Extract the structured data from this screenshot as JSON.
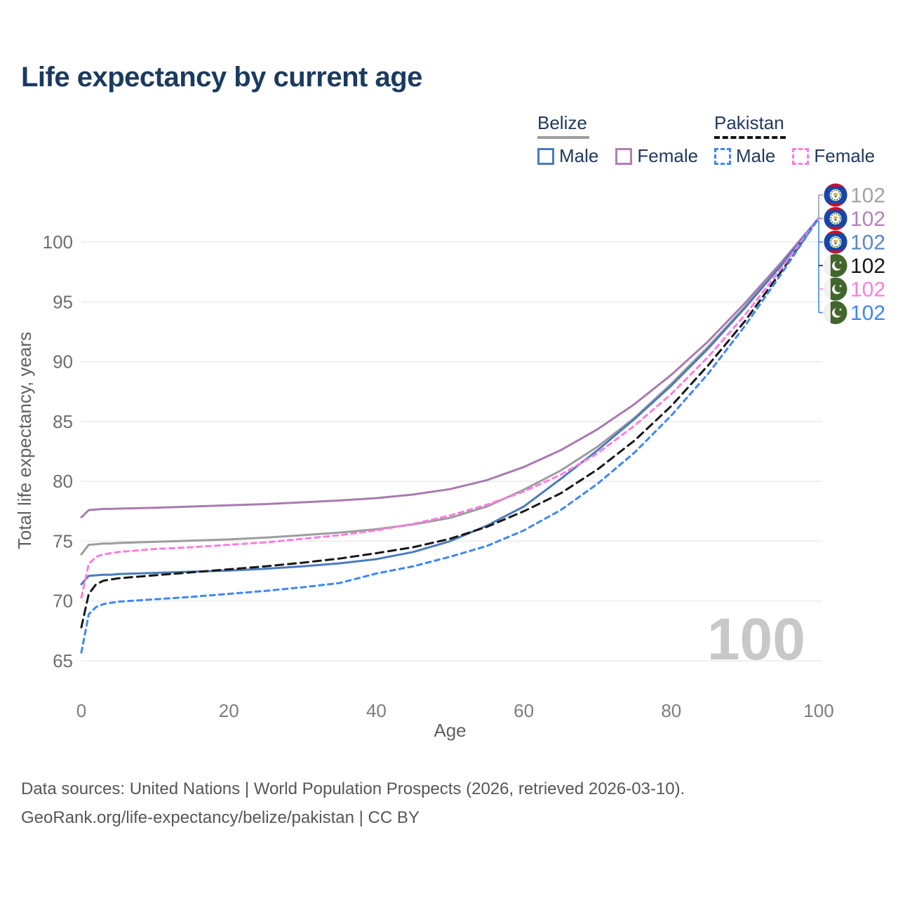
{
  "title": "Life expectancy by current age",
  "title_color": "#1b3a5f",
  "legend": {
    "groups": [
      {
        "label": "Belize",
        "line_style": "solid",
        "line_color": "#9e9e9e",
        "items": [
          {
            "label": "Male",
            "color": "#4a7bbd",
            "dashed": false
          },
          {
            "label": "Female",
            "color": "#b47cb4",
            "dashed": false
          }
        ]
      },
      {
        "label": "Pakistan",
        "line_style": "dashed",
        "line_color": "#141414",
        "items": [
          {
            "label": "Male",
            "color": "#3e87f5",
            "dashed": true
          },
          {
            "label": "Female",
            "color": "#ff7ce0",
            "dashed": true
          }
        ]
      }
    ]
  },
  "chart_data": {
    "type": "line",
    "title": "Life expectancy by current age",
    "xlabel": "Age",
    "ylabel": "Total life expectancy, years",
    "xlim": [
      0,
      100
    ],
    "ylim": [
      63.5,
      103
    ],
    "x_ticks": [
      0,
      20,
      40,
      60,
      80,
      100
    ],
    "y_ticks": [
      65,
      70,
      75,
      80,
      85,
      90,
      95,
      100
    ],
    "grid": "horizontal",
    "legend_position": "top-right",
    "watermark": "100",
    "x": [
      0,
      1,
      2,
      3,
      4,
      5,
      10,
      15,
      20,
      25,
      30,
      35,
      40,
      45,
      50,
      55,
      60,
      65,
      70,
      75,
      80,
      85,
      90,
      95,
      100
    ],
    "series": [
      {
        "name": "Belize Both sexes",
        "country": "Belize",
        "color": "#9c9c9c",
        "label_color": "#a3a3a3",
        "dash": "solid",
        "values": [
          73.9,
          74.7,
          74.75,
          74.8,
          74.8,
          74.85,
          74.95,
          75.05,
          75.15,
          75.3,
          75.5,
          75.72,
          76.0,
          76.4,
          76.95,
          77.9,
          79.3,
          80.9,
          82.9,
          85.3,
          88.15,
          91.25,
          94.6,
          98.2,
          102
        ]
      },
      {
        "name": "Belize Female",
        "country": "Belize",
        "color": "#a87bb0",
        "label_color": "#b283b8",
        "dash": "solid",
        "values": [
          77.0,
          77.6,
          77.65,
          77.7,
          77.7,
          77.72,
          77.8,
          77.9,
          78.0,
          78.1,
          78.25,
          78.4,
          78.6,
          78.9,
          79.35,
          80.1,
          81.2,
          82.6,
          84.35,
          86.45,
          88.9,
          91.7,
          94.9,
          98.35,
          102
        ]
      },
      {
        "name": "Belize Male",
        "country": "Belize",
        "color": "#4a7bbd",
        "label_color": "#5b87c9",
        "dash": "solid",
        "values": [
          71.4,
          72.1,
          72.15,
          72.2,
          72.2,
          72.25,
          72.35,
          72.45,
          72.55,
          72.7,
          72.9,
          73.15,
          73.5,
          74.1,
          75.0,
          76.3,
          77.9,
          80.2,
          82.6,
          85.2,
          88.0,
          91.1,
          94.5,
          98.1,
          102
        ]
      },
      {
        "name": "Pakistan Both sexes",
        "country": "Pakistan",
        "color": "#171717",
        "label_color": "#171717",
        "dash": "dashed-long",
        "values": [
          67.8,
          70.6,
          71.4,
          71.7,
          71.8,
          71.9,
          72.15,
          72.4,
          72.65,
          72.9,
          73.2,
          73.55,
          74.0,
          74.5,
          75.2,
          76.2,
          77.5,
          79.0,
          81.0,
          83.4,
          86.3,
          89.7,
          93.4,
          97.6,
          102
        ]
      },
      {
        "name": "Pakistan Female",
        "country": "Pakistan",
        "color": "#ff7ce0",
        "label_color": "#ff7ce0",
        "dash": "dashed",
        "values": [
          70.3,
          73.1,
          73.7,
          73.9,
          74.0,
          74.1,
          74.35,
          74.5,
          74.7,
          74.9,
          75.2,
          75.5,
          75.9,
          76.45,
          77.15,
          78.05,
          79.15,
          80.55,
          82.35,
          84.65,
          87.3,
          90.4,
          93.9,
          97.85,
          102
        ]
      },
      {
        "name": "Pakistan Male",
        "country": "Pakistan",
        "color": "#3e87f5",
        "label_color": "#3e87f5",
        "dash": "dashed",
        "values": [
          65.7,
          68.9,
          69.5,
          69.75,
          69.85,
          69.95,
          70.15,
          70.35,
          70.6,
          70.85,
          71.15,
          71.5,
          72.3,
          72.9,
          73.7,
          74.6,
          75.9,
          77.6,
          79.8,
          82.4,
          85.5,
          89.0,
          93.0,
          97.4,
          102
        ]
      }
    ],
    "end_callouts": [
      {
        "flag": "belize",
        "value": "102",
        "color": "#a3a3a3"
      },
      {
        "flag": "belize",
        "value": "102",
        "color": "#b283b8"
      },
      {
        "flag": "belize",
        "value": "102",
        "color": "#5b87c9"
      },
      {
        "flag": "pakistan",
        "value": "102",
        "color": "#171717"
      },
      {
        "flag": "pakistan",
        "value": "102",
        "color": "#ff7ce0"
      },
      {
        "flag": "pakistan",
        "value": "102",
        "color": "#3e87f5"
      }
    ]
  },
  "footer": {
    "line1": "Data sources: United Nations | World Population Prospects (2026, retrieved 2026-03-10).",
    "line2": "GeoRank.org/life-expectancy/belize/pakistan | CC BY"
  }
}
